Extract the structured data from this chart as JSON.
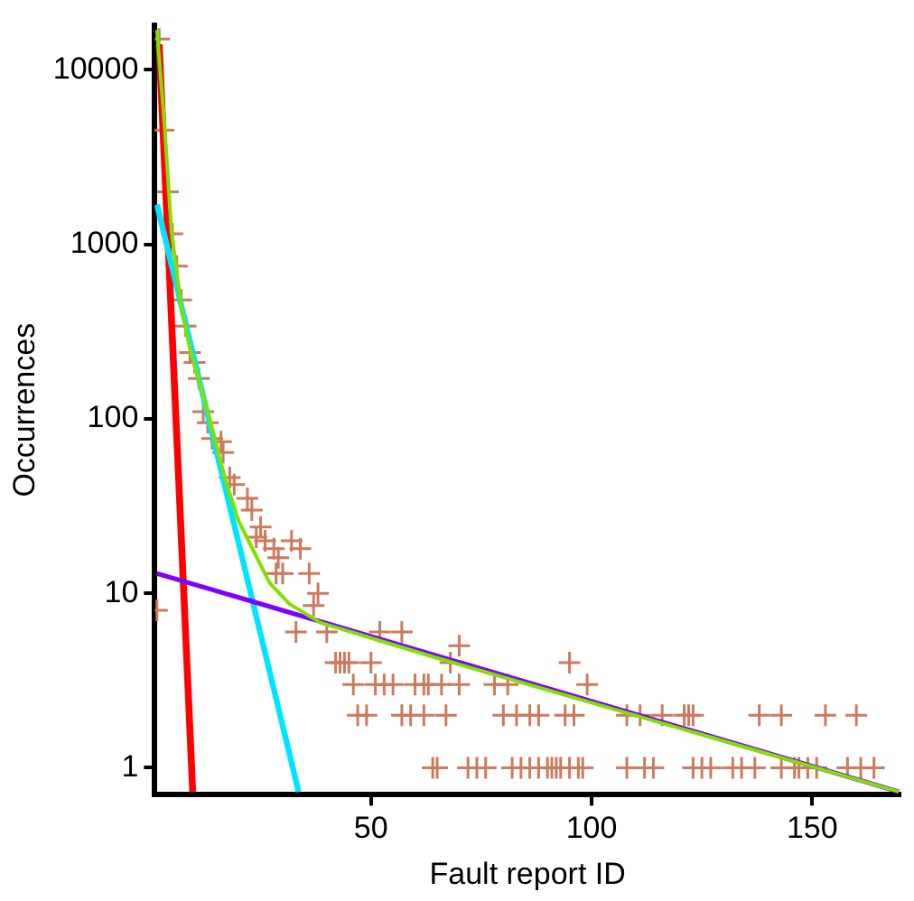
{
  "chart_data": {
    "type": "scatter",
    "xlabel": "Fault report ID",
    "ylabel": "Occurrences",
    "xlim": [
      1,
      170
    ],
    "xticks": [
      50,
      100,
      150
    ],
    "ylim": [
      0.73,
      18000
    ],
    "yticks": [
      1,
      10,
      100,
      1000,
      10000
    ],
    "log": "y",
    "grid": false,
    "legend": false,
    "marker": "cross",
    "series": [
      {
        "color": "#cc7a5c",
        "x": [
          1.5,
          2,
          3,
          4,
          5,
          6,
          7,
          8,
          9,
          10,
          11,
          12,
          13,
          14,
          16,
          16.5,
          18,
          19,
          22,
          23,
          24,
          25,
          26,
          28,
          29,
          32,
          34,
          28.5,
          30,
          36,
          38,
          37,
          33,
          40,
          42,
          43,
          44,
          45,
          50,
          52,
          57,
          46,
          51,
          53,
          55,
          60,
          62,
          47,
          49,
          57,
          59,
          62,
          68,
          70,
          95,
          99,
          63,
          66,
          70,
          78,
          81,
          67,
          80,
          83,
          86,
          88,
          94,
          96,
          108,
          111,
          116,
          121,
          122,
          123,
          138,
          143,
          153,
          160,
          64,
          65,
          72,
          74,
          76,
          82,
          84,
          86,
          88,
          90,
          91,
          92,
          93,
          95,
          97,
          98,
          108,
          112,
          114,
          123,
          125,
          127,
          132,
          134,
          137,
          143,
          146,
          147,
          149,
          151,
          158,
          161,
          164
        ],
        "values": [
          8,
          15000,
          4500,
          2000,
          1150,
          750,
          480,
          340,
          240,
          210,
          170,
          110,
          95,
          77,
          74,
          64,
          46,
          42,
          35,
          30,
          21,
          24,
          20,
          18,
          16,
          20,
          18,
          13,
          13,
          13,
          10,
          8.5,
          6,
          6,
          4,
          4,
          4,
          4,
          4,
          6,
          6,
          3,
          3,
          3,
          3,
          3,
          3,
          2,
          2,
          2,
          2,
          2,
          4,
          5,
          4,
          3,
          3,
          3,
          3,
          3,
          3,
          2,
          2,
          2,
          2,
          2,
          2,
          2,
          2,
          2,
          2,
          2,
          2,
          2,
          2,
          2,
          2,
          2,
          1,
          1,
          1,
          1,
          1,
          1,
          1,
          1,
          1,
          1,
          1,
          1,
          1,
          1,
          1,
          1,
          1,
          1,
          1,
          1,
          1,
          1,
          1,
          1,
          1,
          1,
          1,
          1,
          1,
          1,
          1,
          1,
          1
        ]
      },
      {
        "type": "line",
        "marker": "none",
        "color": "#ff0000",
        "x": [
          2,
          9.6
        ],
        "values": [
          14000,
          0.73
        ]
      },
      {
        "type": "line",
        "marker": "none",
        "color": "#00e5ff",
        "x": [
          1.5,
          33.6
        ],
        "values": [
          1690,
          0.73
        ]
      },
      {
        "type": "line",
        "marker": "none",
        "color": "#8000ff",
        "x": [
          1.5,
          169.6
        ],
        "values": [
          13,
          0.73
        ]
      },
      {
        "type": "line",
        "marker": "none",
        "color": "#80e000",
        "x": [
          1.5,
          3.2,
          4.8,
          6.9,
          9,
          13,
          17,
          20,
          23.3,
          27,
          31.5,
          38.5,
          64.4,
          169.6
        ],
        "values": [
          16900,
          4900,
          1180,
          460,
          250,
          110,
          45,
          26,
          17.7,
          11.5,
          8.7,
          6.8,
          4.3,
          0.73
        ]
      }
    ]
  }
}
